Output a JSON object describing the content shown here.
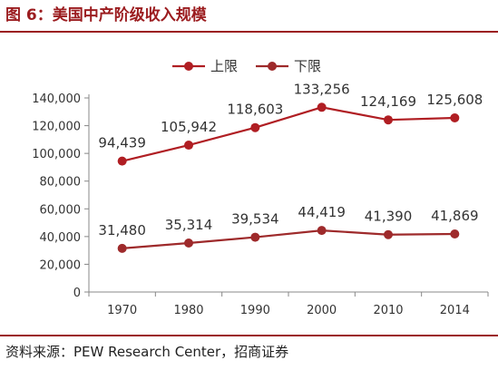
{
  "figure": {
    "title": "图 6：美国中产阶级收入规模",
    "source": "资料来源：PEW Research Center，招商证券"
  },
  "chart_data": {
    "type": "line",
    "x": [
      "1970",
      "1980",
      "1990",
      "2000",
      "2010",
      "2014"
    ],
    "y_ticks": [
      "0",
      "20,000",
      "40,000",
      "60,000",
      "80,000",
      "100,000",
      "120,000",
      "140,000"
    ],
    "ylim": [
      0,
      140000
    ],
    "grid": false,
    "legend_position": "top-center",
    "series": [
      {
        "name": "上限",
        "values": [
          94439,
          105942,
          118603,
          133256,
          124169,
          125608
        ],
        "labels": [
          "94,439",
          "105,942",
          "118,603",
          "133,256",
          "124,169",
          "125,608"
        ],
        "color": "#b01e23"
      },
      {
        "name": "下限",
        "values": [
          31480,
          35314,
          39534,
          44419,
          41390,
          41869
        ],
        "labels": [
          "31,480",
          "35,314",
          "39,534",
          "44,419",
          "41,390",
          "41,869"
        ],
        "color": "#9e2a2b"
      }
    ]
  }
}
